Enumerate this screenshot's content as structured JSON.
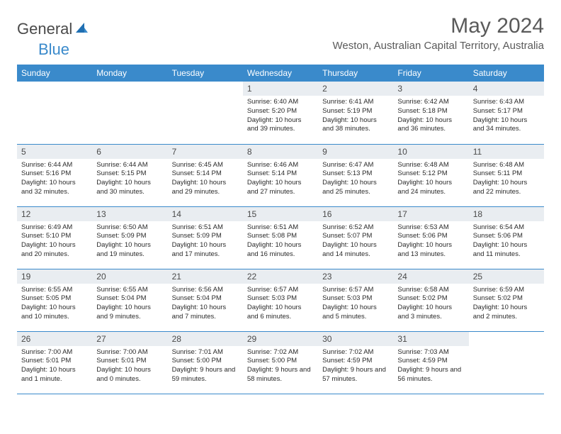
{
  "brand": {
    "part1": "General",
    "part2": "Blue",
    "accent_color": "#3a8acb",
    "text_color": "#4a4a4a"
  },
  "header": {
    "title": "May 2024",
    "location": "Weston, Australian Capital Territory, Australia"
  },
  "calendar": {
    "header_bg": "#3a8acb",
    "header_fg": "#ffffff",
    "daybar_bg": "#e9edf1",
    "border_color": "#3a8acb",
    "days": [
      "Sunday",
      "Monday",
      "Tuesday",
      "Wednesday",
      "Thursday",
      "Friday",
      "Saturday"
    ],
    "weeks": [
      [
        null,
        null,
        null,
        {
          "n": "1",
          "sr": "6:40 AM",
          "ss": "5:20 PM",
          "dl": "10 hours and 39 minutes."
        },
        {
          "n": "2",
          "sr": "6:41 AM",
          "ss": "5:19 PM",
          "dl": "10 hours and 38 minutes."
        },
        {
          "n": "3",
          "sr": "6:42 AM",
          "ss": "5:18 PM",
          "dl": "10 hours and 36 minutes."
        },
        {
          "n": "4",
          "sr": "6:43 AM",
          "ss": "5:17 PM",
          "dl": "10 hours and 34 minutes."
        }
      ],
      [
        {
          "n": "5",
          "sr": "6:44 AM",
          "ss": "5:16 PM",
          "dl": "10 hours and 32 minutes."
        },
        {
          "n": "6",
          "sr": "6:44 AM",
          "ss": "5:15 PM",
          "dl": "10 hours and 30 minutes."
        },
        {
          "n": "7",
          "sr": "6:45 AM",
          "ss": "5:14 PM",
          "dl": "10 hours and 29 minutes."
        },
        {
          "n": "8",
          "sr": "6:46 AM",
          "ss": "5:14 PM",
          "dl": "10 hours and 27 minutes."
        },
        {
          "n": "9",
          "sr": "6:47 AM",
          "ss": "5:13 PM",
          "dl": "10 hours and 25 minutes."
        },
        {
          "n": "10",
          "sr": "6:48 AM",
          "ss": "5:12 PM",
          "dl": "10 hours and 24 minutes."
        },
        {
          "n": "11",
          "sr": "6:48 AM",
          "ss": "5:11 PM",
          "dl": "10 hours and 22 minutes."
        }
      ],
      [
        {
          "n": "12",
          "sr": "6:49 AM",
          "ss": "5:10 PM",
          "dl": "10 hours and 20 minutes."
        },
        {
          "n": "13",
          "sr": "6:50 AM",
          "ss": "5:09 PM",
          "dl": "10 hours and 19 minutes."
        },
        {
          "n": "14",
          "sr": "6:51 AM",
          "ss": "5:09 PM",
          "dl": "10 hours and 17 minutes."
        },
        {
          "n": "15",
          "sr": "6:51 AM",
          "ss": "5:08 PM",
          "dl": "10 hours and 16 minutes."
        },
        {
          "n": "16",
          "sr": "6:52 AM",
          "ss": "5:07 PM",
          "dl": "10 hours and 14 minutes."
        },
        {
          "n": "17",
          "sr": "6:53 AM",
          "ss": "5:06 PM",
          "dl": "10 hours and 13 minutes."
        },
        {
          "n": "18",
          "sr": "6:54 AM",
          "ss": "5:06 PM",
          "dl": "10 hours and 11 minutes."
        }
      ],
      [
        {
          "n": "19",
          "sr": "6:55 AM",
          "ss": "5:05 PM",
          "dl": "10 hours and 10 minutes."
        },
        {
          "n": "20",
          "sr": "6:55 AM",
          "ss": "5:04 PM",
          "dl": "10 hours and 9 minutes."
        },
        {
          "n": "21",
          "sr": "6:56 AM",
          "ss": "5:04 PM",
          "dl": "10 hours and 7 minutes."
        },
        {
          "n": "22",
          "sr": "6:57 AM",
          "ss": "5:03 PM",
          "dl": "10 hours and 6 minutes."
        },
        {
          "n": "23",
          "sr": "6:57 AM",
          "ss": "5:03 PM",
          "dl": "10 hours and 5 minutes."
        },
        {
          "n": "24",
          "sr": "6:58 AM",
          "ss": "5:02 PM",
          "dl": "10 hours and 3 minutes."
        },
        {
          "n": "25",
          "sr": "6:59 AM",
          "ss": "5:02 PM",
          "dl": "10 hours and 2 minutes."
        }
      ],
      [
        {
          "n": "26",
          "sr": "7:00 AM",
          "ss": "5:01 PM",
          "dl": "10 hours and 1 minute."
        },
        {
          "n": "27",
          "sr": "7:00 AM",
          "ss": "5:01 PM",
          "dl": "10 hours and 0 minutes."
        },
        {
          "n": "28",
          "sr": "7:01 AM",
          "ss": "5:00 PM",
          "dl": "9 hours and 59 minutes."
        },
        {
          "n": "29",
          "sr": "7:02 AM",
          "ss": "5:00 PM",
          "dl": "9 hours and 58 minutes."
        },
        {
          "n": "30",
          "sr": "7:02 AM",
          "ss": "4:59 PM",
          "dl": "9 hours and 57 minutes."
        },
        {
          "n": "31",
          "sr": "7:03 AM",
          "ss": "4:59 PM",
          "dl": "9 hours and 56 minutes."
        },
        null
      ]
    ],
    "labels": {
      "sunrise": "Sunrise:",
      "sunset": "Sunset:",
      "daylight": "Daylight:"
    }
  }
}
